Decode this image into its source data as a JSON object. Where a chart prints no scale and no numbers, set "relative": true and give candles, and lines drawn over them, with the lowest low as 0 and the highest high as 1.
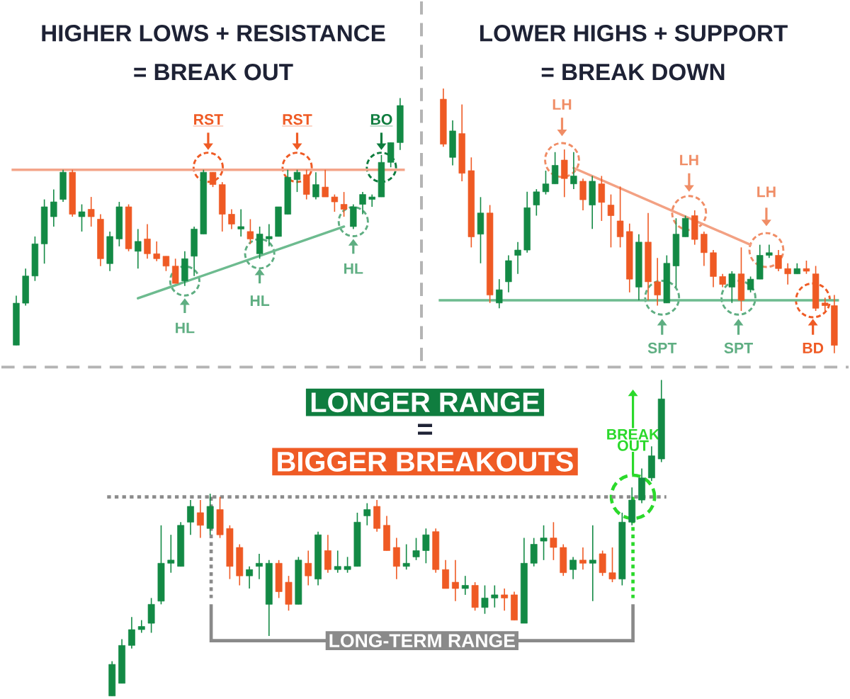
{
  "chart_data": [
    {
      "type": "candlestick",
      "relative": true,
      "title": "HIGHER LOWS + RESISTANCE",
      "subtitle": "= BREAK OUT",
      "categories": [
        null,
        null,
        null,
        null,
        null,
        null,
        null,
        null,
        null,
        null,
        null,
        null,
        null,
        null,
        null,
        null,
        null,
        null,
        null,
        null,
        null,
        null,
        null,
        null,
        null,
        null,
        null,
        null,
        null,
        null,
        null,
        null,
        null,
        null,
        null,
        null,
        null,
        null,
        null,
        null,
        null,
        null
      ],
      "ohlc": [
        [
          0,
          0.2,
          0,
          0.17
        ],
        [
          0.17,
          0.31,
          0.16,
          0.28
        ],
        [
          0.28,
          0.44,
          0.26,
          0.41
        ],
        [
          0.41,
          0.59,
          0.33,
          0.56
        ],
        [
          0.52,
          0.63,
          0.48,
          0.58
        ],
        [
          0.59,
          0.71,
          0.58,
          0.7
        ],
        [
          0.7,
          0.71,
          0.52,
          0.53
        ],
        [
          0.52,
          0.57,
          0.46,
          0.54
        ],
        [
          0.55,
          0.6,
          0.48,
          0.52
        ],
        [
          0.51,
          0.53,
          0.32,
          0.35
        ],
        [
          0.33,
          0.46,
          0.3,
          0.44
        ],
        [
          0.43,
          0.58,
          0.4,
          0.56
        ],
        [
          0.56,
          0.57,
          0.38,
          0.39
        ],
        [
          0.38,
          0.47,
          0.31,
          0.42
        ],
        [
          0.43,
          0.49,
          0.35,
          0.37
        ],
        [
          0.37,
          0.42,
          0.34,
          0.35
        ],
        [
          0.36,
          0.36,
          0.3,
          0.32
        ],
        [
          0.32,
          0.35,
          0.25,
          0.25
        ],
        [
          0.26,
          0.38,
          0.24,
          0.35
        ],
        [
          0.36,
          0.48,
          0.28,
          0.47
        ],
        [
          0.45,
          0.71,
          0.45,
          0.7
        ],
        [
          0.7,
          0.7,
          0.64,
          0.65
        ],
        [
          0.65,
          0.66,
          0.46,
          0.53
        ],
        [
          0.53,
          0.55,
          0.47,
          0.49
        ],
        [
          0.47,
          0.55,
          0.44,
          0.48
        ],
        [
          0.46,
          0.51,
          0.41,
          0.43
        ],
        [
          0.37,
          0.48,
          0.35,
          0.45
        ],
        [
          0.43,
          0.49,
          0.4,
          0.44
        ],
        [
          0.44,
          0.56,
          0.44,
          0.56
        ],
        [
          0.53,
          0.71,
          0.53,
          0.68
        ],
        [
          0.67,
          0.71,
          0.62,
          0.7
        ],
        [
          0.69,
          0.71,
          0.59,
          0.61
        ],
        [
          0.6,
          0.7,
          0.59,
          0.65
        ],
        [
          0.64,
          0.71,
          0.6,
          0.6
        ],
        [
          0.6,
          0.61,
          0.54,
          0.58
        ],
        [
          0.57,
          0.62,
          0.52,
          0.55
        ],
        [
          0.48,
          0.57,
          0.47,
          0.56
        ],
        [
          0.57,
          0.62,
          0.53,
          0.61
        ],
        [
          0.59,
          0.61,
          0.56,
          0.6
        ],
        [
          0.6,
          0.77,
          0.6,
          0.74
        ],
        [
          0.74,
          0.82,
          0.72,
          0.82
        ],
        [
          0.82,
          1.0,
          0.79,
          0.97
        ]
      ],
      "colors": [
        "#138a45",
        "#138a45",
        "#138a45",
        "#138a45",
        "#138a45",
        "#138a45",
        "#ef5a24",
        "#138a45",
        "#ef5a24",
        "#ef5a24",
        "#138a45",
        "#138a45",
        "#ef5a24",
        "#138a45",
        "#ef5a24",
        "#ef5a24",
        "#ef5a24",
        "#ef5a24",
        "#138a45",
        "#138a45",
        "#138a45",
        "#ef5a24",
        "#ef5a24",
        "#ef5a24",
        "#138a45",
        "#ef5a24",
        "#138a45",
        "#138a45",
        "#138a45",
        "#138a45",
        "#138a45",
        "#ef5a24",
        "#138a45",
        "#ef5a24",
        "#ef5a24",
        "#ef5a24",
        "#138a45",
        "#138a45",
        "#138a45",
        "#138a45",
        "#138a45",
        "#138a45"
      ],
      "series": [
        {
          "type": "line",
          "color": "#6dbb8f",
          "values": [
            null,
            null,
            null,
            null,
            null,
            null,
            null,
            null,
            null,
            null,
            null,
            null,
            null,
            0.19,
            null,
            null,
            null,
            null,
            null,
            null,
            null,
            null,
            null,
            null,
            null,
            null,
            null,
            null,
            null,
            null,
            null,
            null,
            null,
            null,
            null,
            0.48,
            null,
            null,
            null,
            null,
            null,
            null
          ]
        }
      ],
      "ref_lines": [
        {
          "axis": "y",
          "value": 0.71,
          "color": "#f4a58a",
          "line_style": "solid"
        }
      ],
      "annotations": [
        "RST",
        "RST",
        "BO",
        "HL",
        "HL",
        "HL"
      ]
    },
    {
      "type": "candlestick",
      "relative": true,
      "title": "LOWER HIGHS + SUPPORT",
      "subtitle": "= BREAK DOWN",
      "categories": [
        null,
        null,
        null,
        null,
        null,
        null,
        null,
        null,
        null,
        null,
        null,
        null,
        null,
        null,
        null,
        null,
        null,
        null,
        null,
        null,
        null,
        null,
        null,
        null,
        null,
        null,
        null,
        null,
        null,
        null,
        null,
        null,
        null,
        null,
        null,
        null,
        null,
        null,
        null,
        null,
        null,
        null,
        null
      ],
      "ohlc": [
        [
          0.96,
          1.0,
          0.78,
          0.79
        ],
        [
          0.74,
          0.88,
          0.71,
          0.84
        ],
        [
          0.83,
          0.94,
          0.65,
          0.68
        ],
        [
          0.69,
          0.74,
          0.4,
          0.44
        ],
        [
          0.45,
          0.59,
          0.34,
          0.53
        ],
        [
          0.53,
          0.56,
          0.19,
          0.22
        ],
        [
          0.19,
          0.28,
          0.17,
          0.24
        ],
        [
          0.27,
          0.37,
          0.23,
          0.35
        ],
        [
          0.37,
          0.42,
          0.3,
          0.39
        ],
        [
          0.39,
          0.61,
          0.38,
          0.55
        ],
        [
          0.56,
          0.62,
          0.52,
          0.61
        ],
        [
          0.61,
          0.69,
          0.6,
          0.64
        ],
        [
          0.64,
          0.76,
          0.64,
          0.71
        ],
        [
          0.73,
          0.77,
          0.59,
          0.66
        ],
        [
          0.64,
          0.76,
          0.62,
          0.67
        ],
        [
          0.65,
          0.66,
          0.54,
          0.58
        ],
        [
          0.56,
          0.67,
          0.47,
          0.65
        ],
        [
          0.64,
          0.67,
          0.5,
          0.57
        ],
        [
          0.56,
          0.6,
          0.4,
          0.52
        ],
        [
          0.5,
          0.63,
          0.4,
          0.44
        ],
        [
          0.46,
          0.49,
          0.23,
          0.28
        ],
        [
          0.25,
          0.45,
          0.2,
          0.42
        ],
        [
          0.42,
          0.53,
          0.2,
          0.27
        ],
        [
          0.27,
          0.36,
          0.18,
          0.22
        ],
        [
          0.19,
          0.37,
          0.19,
          0.34
        ],
        [
          0.33,
          0.51,
          0.25,
          0.45
        ],
        [
          0.44,
          0.52,
          0.44,
          0.51
        ],
        [
          0.52,
          0.54,
          0.41,
          0.43
        ],
        [
          0.45,
          0.46,
          0.33,
          0.38
        ],
        [
          0.38,
          0.39,
          0.25,
          0.29
        ],
        [
          0.29,
          0.3,
          0.25,
          0.26
        ],
        [
          0.25,
          0.31,
          0.19,
          0.3
        ],
        [
          0.3,
          0.4,
          0.16,
          0.2
        ],
        [
          0.24,
          0.29,
          0.23,
          0.28
        ],
        [
          0.28,
          0.41,
          0.28,
          0.37
        ],
        [
          0.37,
          0.41,
          0.36,
          0.38
        ],
        [
          0.37,
          0.39,
          0.31,
          0.32
        ],
        [
          0.32,
          0.34,
          0.26,
          0.3
        ],
        [
          0.3,
          0.34,
          0.3,
          0.32
        ],
        [
          0.32,
          0.35,
          0.3,
          0.31
        ],
        [
          0.3,
          0.33,
          0.16,
          0.17
        ],
        [
          0.19,
          0.21,
          0.16,
          0.18
        ],
        [
          0.18,
          0.22,
          0,
          0.03
        ]
      ],
      "colors": [
        "#ef5a24",
        "#138a45",
        "#ef5a24",
        "#ef5a24",
        "#138a45",
        "#ef5a24",
        "#138a45",
        "#138a45",
        "#138a45",
        "#138a45",
        "#138a45",
        "#138a45",
        "#138a45",
        "#ef5a24",
        "#138a45",
        "#ef5a24",
        "#138a45",
        "#ef5a24",
        "#ef5a24",
        "#ef5a24",
        "#ef5a24",
        "#138a45",
        "#ef5a24",
        "#ef5a24",
        "#138a45",
        "#138a45",
        "#138a45",
        "#ef5a24",
        "#ef5a24",
        "#ef5a24",
        "#ef5a24",
        "#138a45",
        "#ef5a24",
        "#138a45",
        "#138a45",
        "#138a45",
        "#ef5a24",
        "#ef5a24",
        "#138a45",
        "#ef5a24",
        "#ef5a24",
        "#ef5a24",
        "#ef5a24"
      ],
      "series": [
        {
          "type": "line",
          "color": "#f3a183",
          "values": [
            null,
            null,
            null,
            null,
            null,
            null,
            null,
            null,
            null,
            null,
            null,
            null,
            null,
            null,
            0.7,
            null,
            null,
            null,
            null,
            null,
            null,
            null,
            null,
            null,
            null,
            null,
            null,
            null,
            null,
            null,
            null,
            null,
            null,
            0.41,
            null,
            null,
            null,
            null,
            null,
            null,
            null,
            null,
            null
          ]
        }
      ],
      "ref_lines": [
        {
          "axis": "y",
          "value": 0.2,
          "color": "#6dbb8f",
          "line_style": "solid"
        }
      ],
      "annotations": [
        "LH",
        "LH",
        "LH",
        "SPT",
        "SPT",
        "BD"
      ]
    },
    {
      "type": "candlestick",
      "relative": true,
      "title": "LONGER RANGE",
      "subtitle": "BIGGER BREAKOUTS",
      "categories": [
        null,
        null,
        null,
        null,
        null,
        null,
        null,
        null,
        null,
        null,
        null,
        null,
        null,
        null,
        null,
        null,
        null,
        null,
        null,
        null,
        null,
        null,
        null,
        null,
        null,
        null,
        null,
        null,
        null,
        null,
        null,
        null,
        null,
        null,
        null,
        null,
        null,
        null,
        null,
        null,
        null,
        null,
        null,
        null,
        null,
        null,
        null,
        null,
        null,
        null,
        null,
        null,
        null,
        null,
        null,
        null,
        null
      ],
      "ohlc": [
        [
          0,
          0.11,
          0,
          0.1
        ],
        [
          0.04,
          0.18,
          0.04,
          0.16
        ],
        [
          0.16,
          0.25,
          0.15,
          0.21
        ],
        [
          0.21,
          0.24,
          0.2,
          0.22
        ],
        [
          0.23,
          0.31,
          0.2,
          0.29
        ],
        [
          0.3,
          0.54,
          0.29,
          0.42
        ],
        [
          0.42,
          0.51,
          0.39,
          0.43
        ],
        [
          0.41,
          0.55,
          0.41,
          0.54
        ],
        [
          0.55,
          0.62,
          0.51,
          0.6
        ],
        [
          0.58,
          0.62,
          0.5,
          0.54
        ],
        [
          0.53,
          0.64,
          0.51,
          0.6
        ],
        [
          0.59,
          0.63,
          0.5,
          0.51
        ],
        [
          0.53,
          0.54,
          0.37,
          0.41
        ],
        [
          0.47,
          0.48,
          0.35,
          0.38
        ],
        [
          0.38,
          0.41,
          0.34,
          0.4
        ],
        [
          0.41,
          0.45,
          0.37,
          0.42
        ],
        [
          0.29,
          0.43,
          0.19,
          0.42
        ],
        [
          0.42,
          0.43,
          0.31,
          0.33
        ],
        [
          0.36,
          0.38,
          0.27,
          0.29
        ],
        [
          0.29,
          0.44,
          0.29,
          0.43
        ],
        [
          0.42,
          0.46,
          0.35,
          0.38
        ],
        [
          0.37,
          0.52,
          0.35,
          0.51
        ],
        [
          0.46,
          0.51,
          0.39,
          0.4
        ],
        [
          0.4,
          0.46,
          0.39,
          0.41
        ],
        [
          0.4,
          0.44,
          0.39,
          0.41
        ],
        [
          0.41,
          0.58,
          0.41,
          0.55
        ],
        [
          0.57,
          0.61,
          0.54,
          0.59
        ],
        [
          0.6,
          0.62,
          0.52,
          0.53
        ],
        [
          0.54,
          0.57,
          0.46,
          0.46
        ],
        [
          0.47,
          0.5,
          0.37,
          0.41
        ],
        [
          0.41,
          0.48,
          0.4,
          0.42
        ],
        [
          0.44,
          0.5,
          0.43,
          0.46
        ],
        [
          0.46,
          0.53,
          0.42,
          0.51
        ],
        [
          0.52,
          0.53,
          0.39,
          0.4
        ],
        [
          0.4,
          0.43,
          0.34,
          0.34
        ],
        [
          0.36,
          0.43,
          0.3,
          0.34
        ],
        [
          0.34,
          0.38,
          0.32,
          0.35
        ],
        [
          0.35,
          0.36,
          0.27,
          0.28
        ],
        [
          0.28,
          0.35,
          0.26,
          0.31
        ],
        [
          0.31,
          0.35,
          0.28,
          0.32
        ],
        [
          0.32,
          0.34,
          0.27,
          0.31
        ],
        [
          0.32,
          0.33,
          0.24,
          0.24
        ],
        [
          0.23,
          0.5,
          0.23,
          0.42
        ],
        [
          0.42,
          0.5,
          0.41,
          0.48
        ],
        [
          0.49,
          0.54,
          0.43,
          0.5
        ],
        [
          0.5,
          0.55,
          0.43,
          0.47
        ],
        [
          0.47,
          0.48,
          0.38,
          0.39
        ],
        [
          0.4,
          0.44,
          0.37,
          0.43
        ],
        [
          0.43,
          0.47,
          0.4,
          0.42
        ],
        [
          0.42,
          0.54,
          0.3,
          0.43
        ],
        [
          0.45,
          0.46,
          0.38,
          0.39
        ],
        [
          0.39,
          0.47,
          0.36,
          0.37
        ],
        [
          0.37,
          0.58,
          0.35,
          0.55
        ],
        [
          0.55,
          0.66,
          0.54,
          0.62
        ],
        [
          0.62,
          0.72,
          0.61,
          0.69
        ],
        [
          0.69,
          0.79,
          0.68,
          0.76
        ],
        [
          0.75,
          1.0,
          0.74,
          0.94
        ]
      ],
      "colors": [
        "#138a45",
        "#138a45",
        "#138a45",
        "#138a45",
        "#138a45",
        "#138a45",
        "#138a45",
        "#138a45",
        "#138a45",
        "#ef5a24",
        "#138a45",
        "#ef5a24",
        "#ef5a24",
        "#ef5a24",
        "#138a45",
        "#138a45",
        "#138a45",
        "#ef5a24",
        "#ef5a24",
        "#138a45",
        "#ef5a24",
        "#138a45",
        "#ef5a24",
        "#138a45",
        "#138a45",
        "#138a45",
        "#138a45",
        "#ef5a24",
        "#ef5a24",
        "#ef5a24",
        "#138a45",
        "#138a45",
        "#138a45",
        "#ef5a24",
        "#ef5a24",
        "#ef5a24",
        "#138a45",
        "#ef5a24",
        "#138a45",
        "#138a45",
        "#ef5a24",
        "#ef5a24",
        "#138a45",
        "#138a45",
        "#138a45",
        "#ef5a24",
        "#ef5a24",
        "#138a45",
        "#ef5a24",
        "#138a45",
        "#ef5a24",
        "#ef5a24",
        "#138a45",
        "#138a45",
        "#138a45",
        "#138a45",
        "#138a45"
      ],
      "ref_lines": [
        {
          "axis": "y",
          "value": 0.63,
          "color": "#8c8c8c",
          "line_style": "dotted"
        }
      ],
      "annotations": [
        "=",
        "BREAK OUT",
        "LONG-TERM RANGE"
      ]
    }
  ]
}
